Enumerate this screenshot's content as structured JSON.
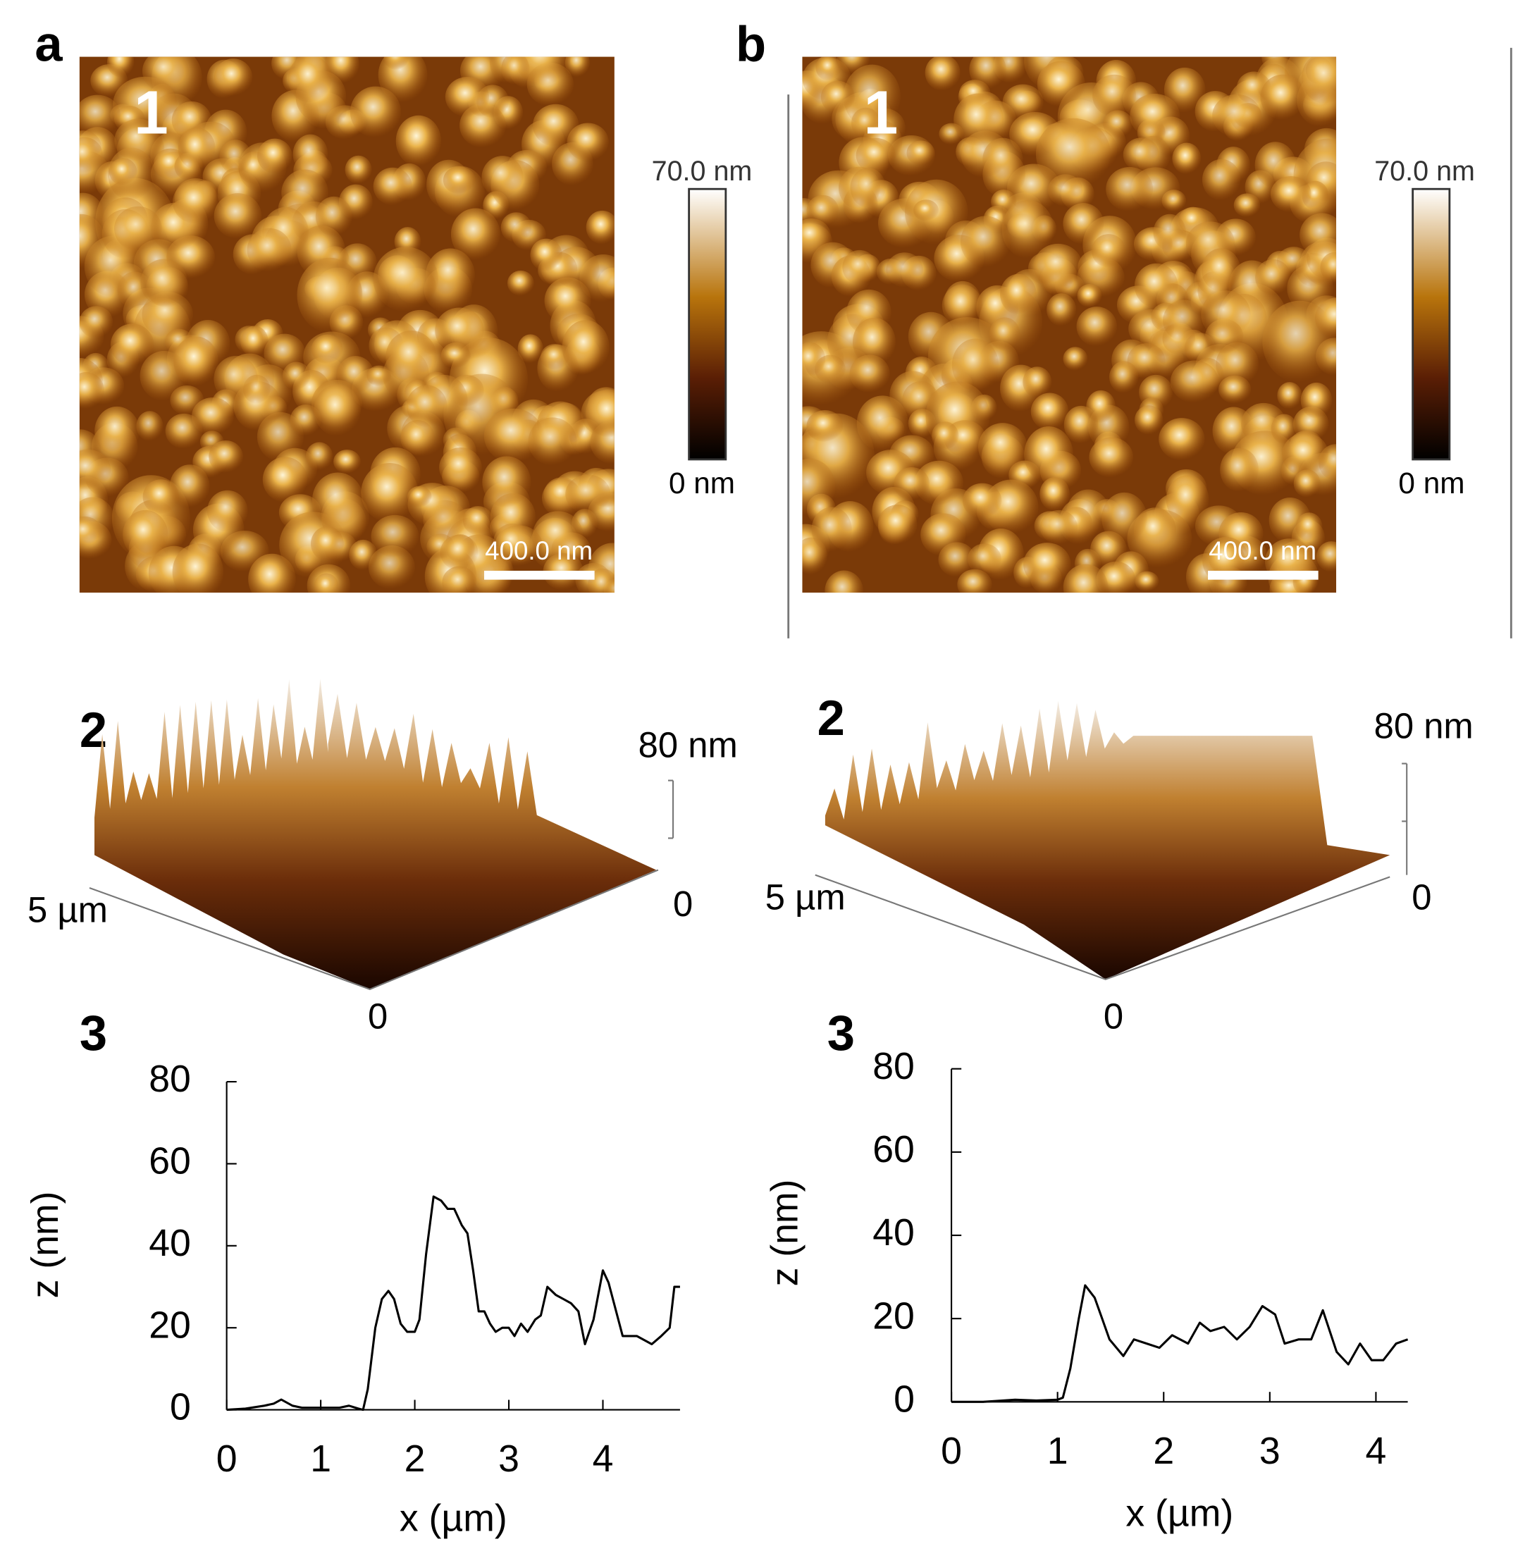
{
  "panels": [
    {
      "label": "a",
      "map": {
        "number": "1",
        "colorbar_max": "70.0 nm",
        "colorbar_min": "0 nm",
        "scale_bar": "400.0 nm"
      },
      "surface": {
        "number": "2",
        "z_label": "80 nm",
        "y_label": "5 µm",
        "x0": "0",
        "y0": "0"
      },
      "profile_number": "3"
    },
    {
      "label": "b",
      "map": {
        "number": "1",
        "colorbar_max": "70.0 nm",
        "colorbar_min": "0 nm",
        "scale_bar": "400.0 nm"
      },
      "surface": {
        "number": "2",
        "z_label": "80 nm",
        "y_label": "5 µm",
        "x0": "0",
        "y0": "0"
      },
      "profile_number": "3"
    }
  ],
  "chart_data": [
    {
      "type": "line",
      "xlabel": "x (µm)",
      "ylabel": "z (nm)",
      "color": "#000000",
      "x": [
        0,
        0.2,
        0.4,
        0.5,
        0.58,
        0.7,
        0.8,
        1.0,
        1.2,
        1.3,
        1.4,
        1.45,
        1.5,
        1.58,
        1.65,
        1.72,
        1.78,
        1.85,
        1.92,
        2.0,
        2.05,
        2.12,
        2.2,
        2.28,
        2.35,
        2.42,
        2.5,
        2.56,
        2.62,
        2.68,
        2.74,
        2.8,
        2.86,
        2.93,
        3.0,
        3.06,
        3.13,
        3.2,
        3.28,
        3.34,
        3.41,
        3.5,
        3.58,
        3.66,
        3.74,
        3.81,
        3.9,
        4.0,
        4.06,
        4.21,
        4.36,
        4.52,
        4.62,
        4.71,
        4.76,
        4.82
      ],
      "values": [
        0,
        0.3,
        1,
        1.5,
        2.5,
        1,
        0.5,
        0.5,
        0.5,
        1,
        0.3,
        0,
        5,
        20,
        27,
        29,
        27,
        21,
        19,
        19,
        22,
        38,
        52,
        51,
        49,
        49,
        45,
        43,
        34,
        24,
        24,
        21,
        19,
        20,
        20,
        18,
        21,
        19,
        22,
        23,
        30,
        28,
        27,
        26,
        24,
        16,
        22,
        34,
        31,
        18,
        18,
        16,
        18,
        20,
        30,
        30
      ],
      "xlim": [
        0,
        4.82
      ],
      "ylim": [
        0,
        80
      ],
      "xticks": [
        0,
        1,
        2,
        3,
        4
      ],
      "yticks": [
        0,
        20,
        40,
        60,
        80
      ]
    },
    {
      "type": "line",
      "xlabel": "x (µm)",
      "ylabel": "z (nm)",
      "color": "#000000",
      "x": [
        0,
        0.3,
        0.6,
        0.8,
        1.0,
        1.05,
        1.12,
        1.2,
        1.26,
        1.35,
        1.42,
        1.49,
        1.62,
        1.72,
        1.84,
        1.96,
        2.08,
        2.23,
        2.34,
        2.44,
        2.57,
        2.69,
        2.81,
        2.93,
        3.05,
        3.14,
        3.27,
        3.39,
        3.5,
        3.63,
        3.74,
        3.85,
        3.96,
        4.07,
        4.19,
        4.3
      ],
      "values": [
        0,
        0,
        0.5,
        0.3,
        0.5,
        1,
        8,
        20,
        28,
        25,
        20,
        15,
        11,
        15,
        14,
        13,
        16,
        14,
        19,
        17,
        18,
        15,
        18,
        23,
        21,
        14,
        15,
        15,
        22,
        12,
        9,
        14,
        10,
        10,
        14,
        15
      ],
      "xlim": [
        0,
        4.3
      ],
      "ylim": [
        0,
        80
      ],
      "xticks": [
        0,
        1,
        2,
        3,
        4
      ],
      "yticks": [
        0,
        20,
        40,
        60,
        80
      ]
    }
  ]
}
